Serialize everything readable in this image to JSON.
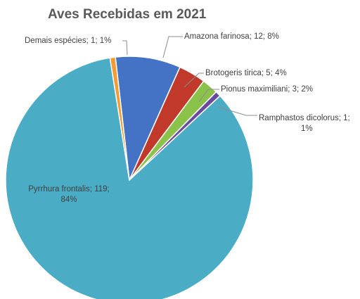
{
  "chart_data": {
    "type": "pie",
    "title": "Aves Recebidas em 2021",
    "series": [
      {
        "name": "Amazona farinosa",
        "value": 12,
        "percent": "8%",
        "label": [
          "Amazona farinosa; 12; 8%"
        ],
        "color": "#4472c4"
      },
      {
        "name": "Brotogeris tirica",
        "value": 5,
        "percent": "4%",
        "label": [
          "Brotogeris tirica; 5; 4%"
        ],
        "color": "#c0392b"
      },
      {
        "name": "Pionus maximiliani",
        "value": 3,
        "percent": "2%",
        "label": [
          "Pionus maximiliani; 3; 2%"
        ],
        "color": "#8bc34a"
      },
      {
        "name": "Ramphastos dicolorus",
        "value": 1,
        "percent": "1%",
        "label": [
          "Ramphastos dicolorus; 1;",
          "1%"
        ],
        "color": "#6a4a9e"
      },
      {
        "name": "Pyrrhura frontalis",
        "value": 119,
        "percent": "84%",
        "label": [
          "Pyrrhura frontalis; 119;",
          "84%"
        ],
        "color": "#4bacc6"
      },
      {
        "name": "Demais espécies",
        "value": 1,
        "percent": "1%",
        "label": [
          "Demais espécies; 1; 1%"
        ],
        "color": "#f39c34"
      }
    ]
  }
}
